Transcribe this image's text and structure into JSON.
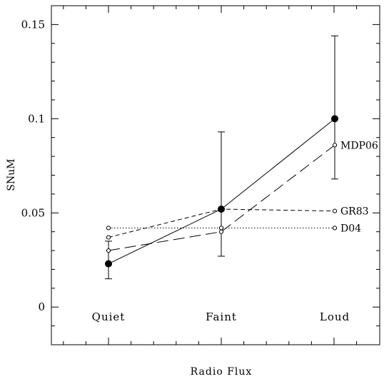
{
  "chart_data": {
    "type": "line",
    "xlabel": "Radio Flux",
    "ylabel": "SNuM",
    "categories": [
      "Quiet",
      "Faint",
      "Loud"
    ],
    "ylim": [
      -0.02,
      0.16
    ],
    "y_ticks": [
      0,
      0.05,
      0.1,
      0.15
    ],
    "y_tick_labels": [
      "0",
      "0.05",
      "0.1",
      "0.15"
    ],
    "grid": false,
    "series": [
      {
        "name": "",
        "style": "solid",
        "marker": "filled-circle",
        "values": [
          0.023,
          0.052,
          0.1
        ],
        "err_low": [
          0.015,
          0.027,
          0.068
        ],
        "err_high": [
          0.035,
          0.093,
          0.144
        ]
      },
      {
        "name": "MDP06",
        "style": "long-dash",
        "marker": "open-circle",
        "values": [
          0.03,
          0.04,
          0.086
        ]
      },
      {
        "name": "GR83",
        "style": "short-dash",
        "marker": "open-circle",
        "values": [
          0.037,
          0.052,
          0.051
        ]
      },
      {
        "name": "D04",
        "style": "dotted",
        "marker": "open-circle",
        "values": [
          0.042,
          0.042,
          0.042
        ]
      }
    ]
  }
}
